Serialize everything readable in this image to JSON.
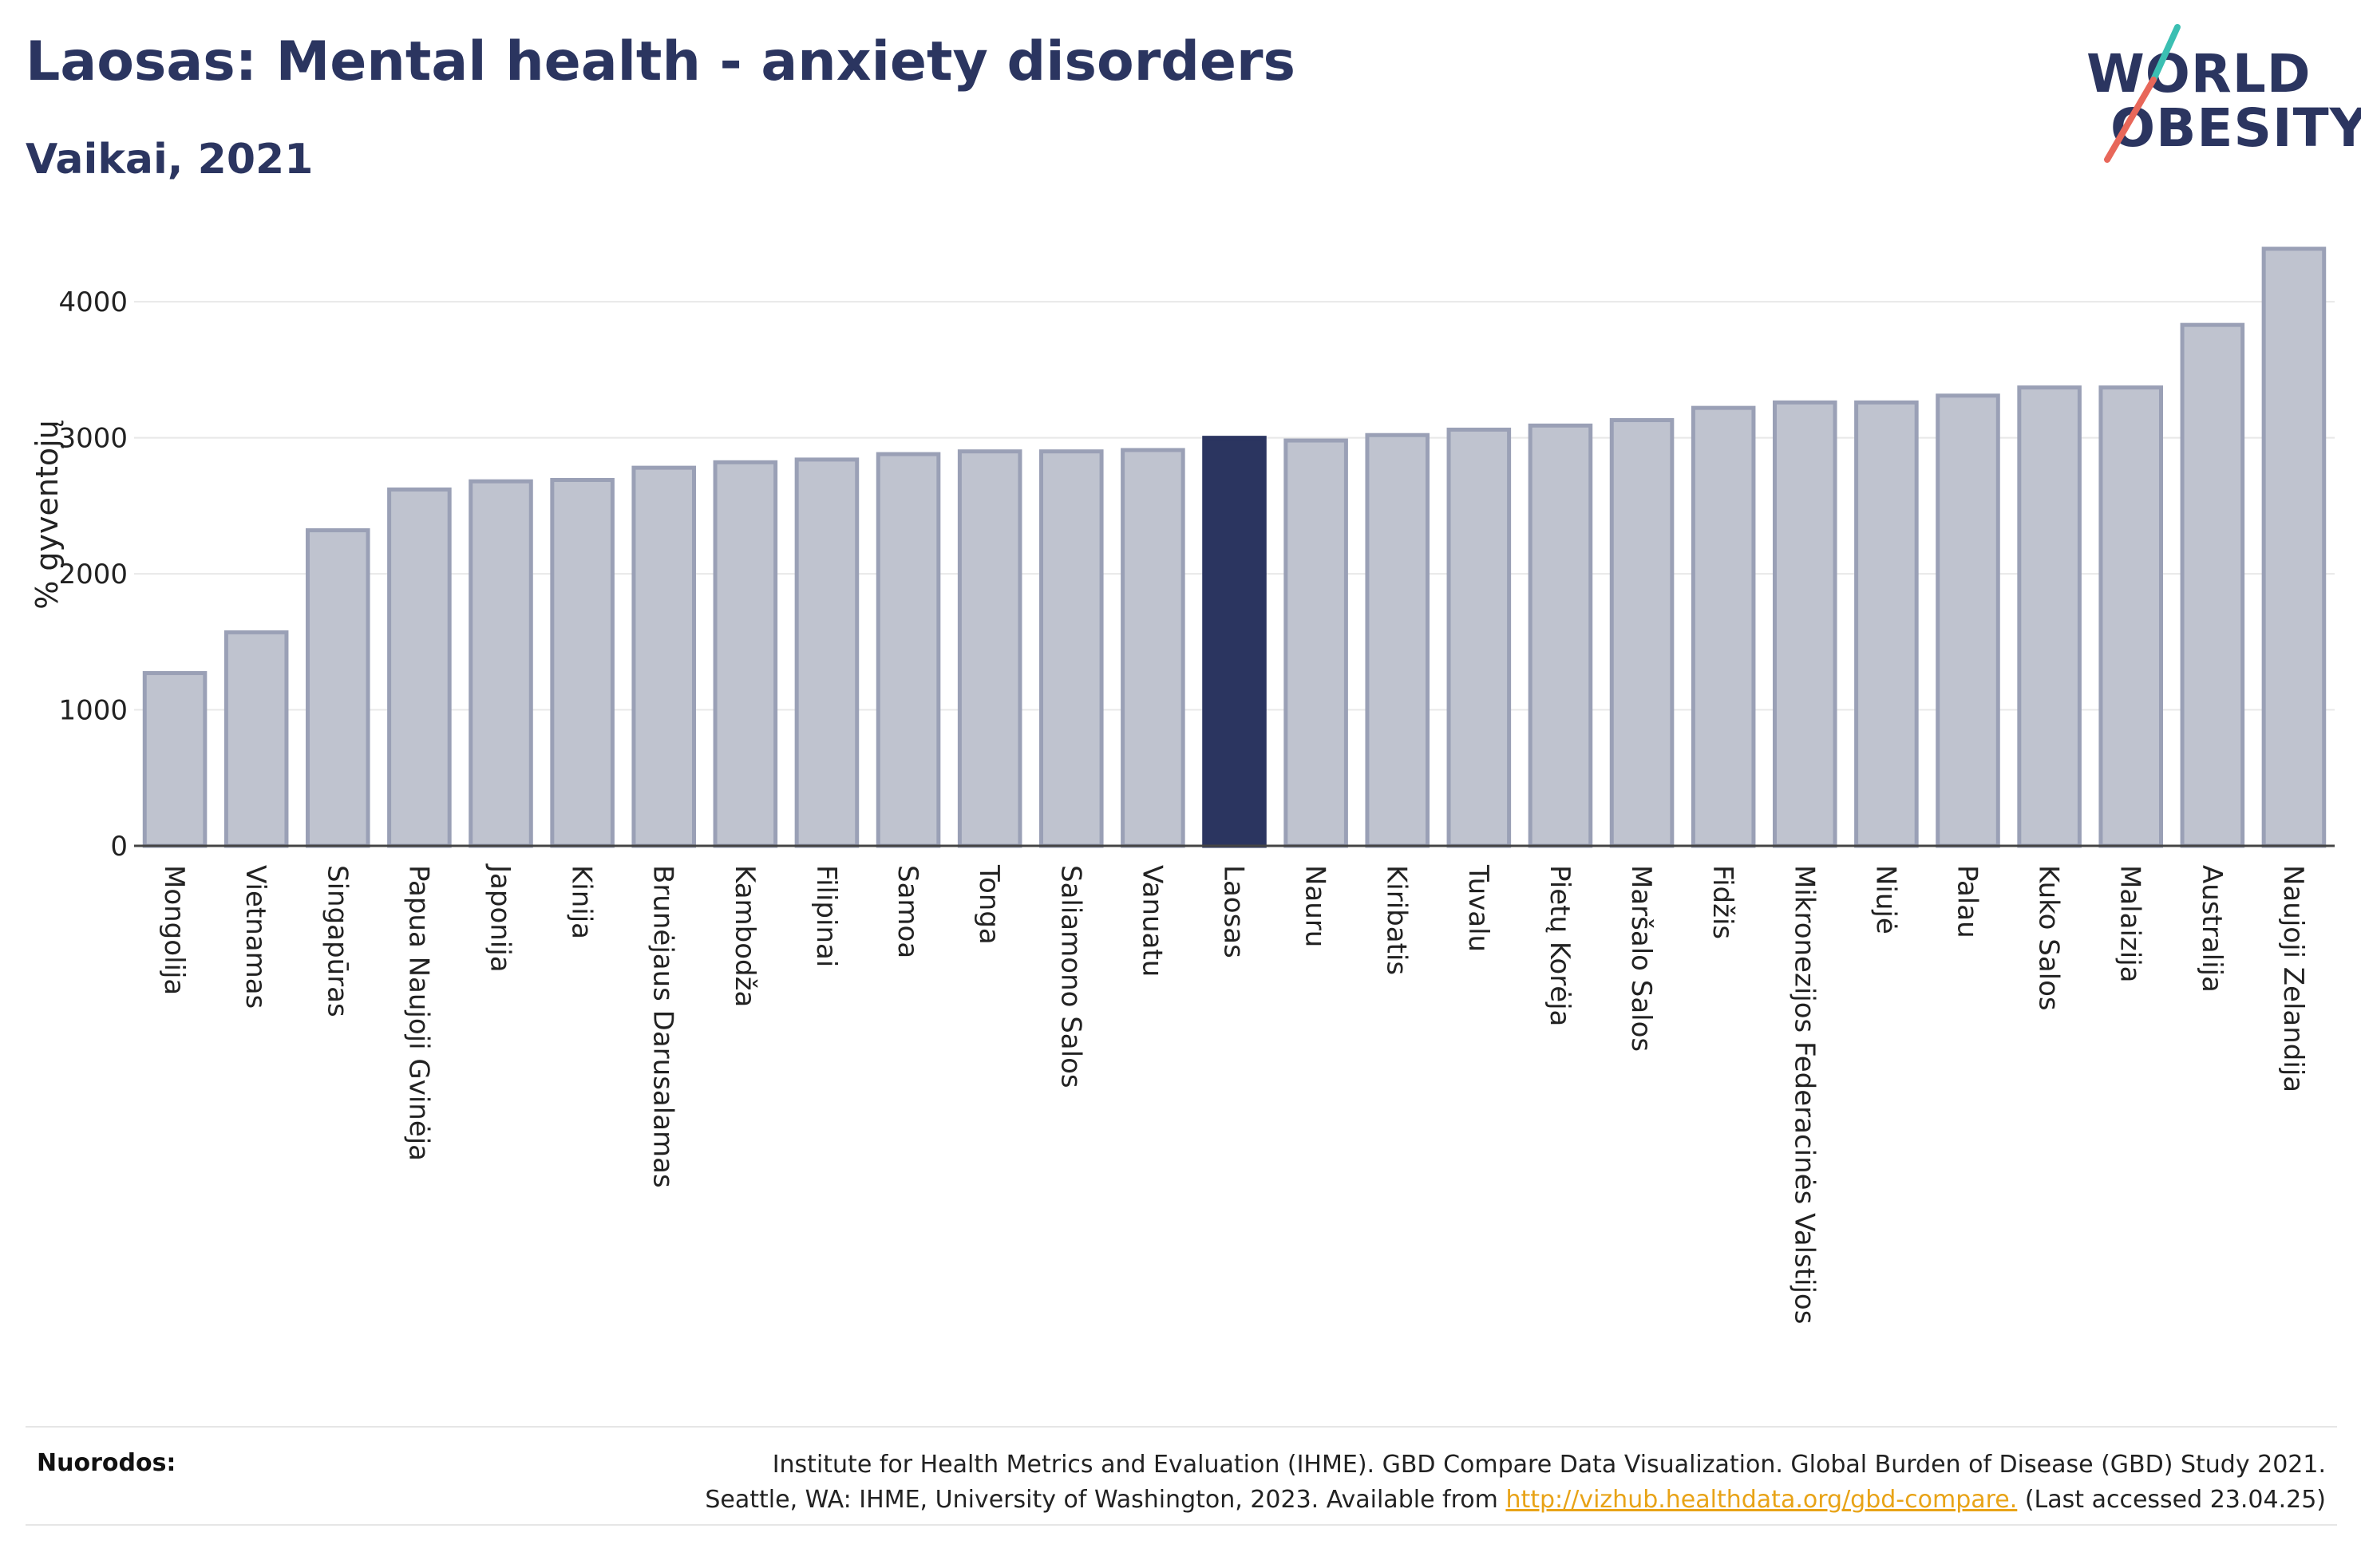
{
  "header": {
    "title": "Laosas: Mental health - anxiety disorders",
    "subtitle": "Vaikai, 2021"
  },
  "logo": {
    "line1": "WORLD",
    "line2": "OBESITY",
    "text_color": "#2b3560",
    "slash_colors": [
      "#3bbfb2",
      "#e8675a"
    ]
  },
  "chart_data": {
    "type": "bar",
    "ylabel": "% gyventojų",
    "xlabel": "",
    "ylim": [
      0,
      4400
    ],
    "yticks": [
      0,
      1000,
      2000,
      3000,
      4000
    ],
    "grid": true,
    "highlight": "Laosas",
    "colors": {
      "bar": "#bfc3cf",
      "bar_edge": "#9aa0b6",
      "highlight": "#2b3560"
    },
    "categories": [
      "Mongolija",
      "Vietnamas",
      "Singapūras",
      "Papua Naujoji Gvinėja",
      "Japonija",
      "Kinija",
      "Brunėjaus Darusalamas",
      "Kambodža",
      "Filipinai",
      "Samoa",
      "Tonga",
      "Saliamono Salos",
      "Vanuatu",
      "Laosas",
      "Nauru",
      "Kiribatis",
      "Tuvalu",
      "Pietų Korėja",
      "Maršalo Salos",
      "Fidžis",
      "Mikronezijos Federacinės Valstijos",
      "Niujė",
      "Palau",
      "Kuko Salos",
      "Malaizija",
      "Australija",
      "Naujoji Zelandija"
    ],
    "values": [
      1270,
      1570,
      2320,
      2620,
      2680,
      2690,
      2780,
      2820,
      2840,
      2880,
      2900,
      2900,
      2910,
      3000,
      2980,
      3020,
      3060,
      3090,
      3130,
      3220,
      3260,
      3260,
      3310,
      3370,
      3370,
      3830,
      4390
    ]
  },
  "footer": {
    "refs_label": "Nuorodos:",
    "refs_line1": "Institute for Health Metrics and Evaluation (IHME). GBD Compare Data Visualization. Global Burden of Disease (GBD) Study 2021.",
    "refs_line2_prefix": "Seattle, WA: IHME, University of Washington, 2023. Available from",
    "refs_link": "http://vizhub.healthdata.org/gbd-compare.",
    "refs_line2_suffix": "(Last accessed 23.04.25)"
  }
}
